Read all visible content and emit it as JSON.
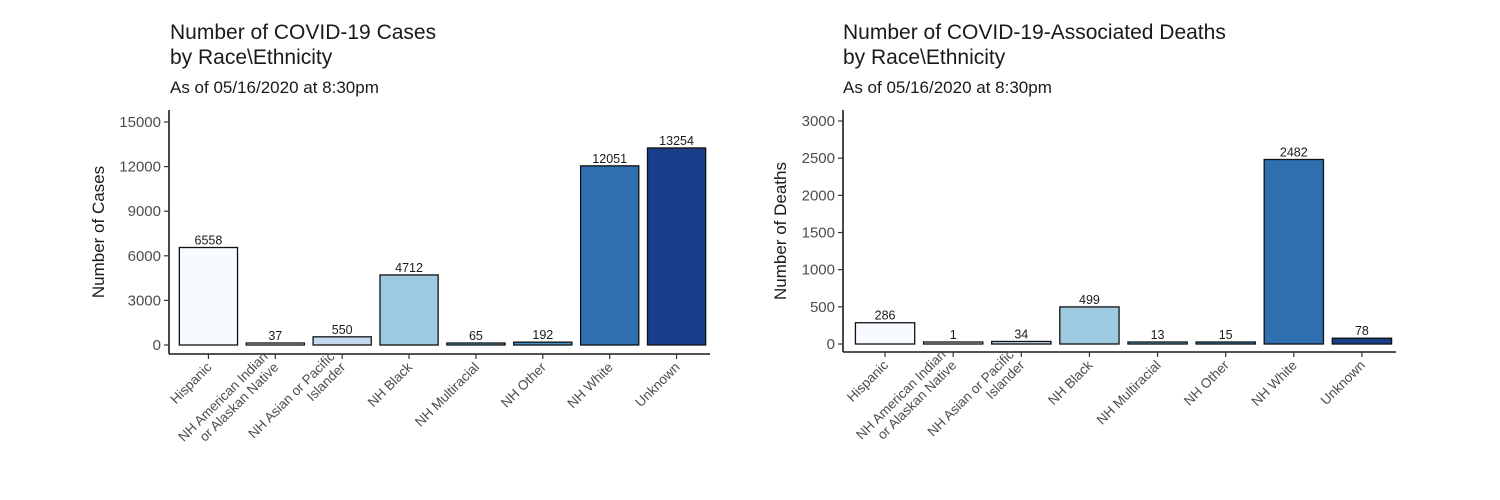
{
  "chart_data": [
    {
      "type": "bar",
      "title_line1": "Number of COVID-19 Cases",
      "title_line2": "by Race\\Ethnicity",
      "subtitle": "As of 05/16/2020 at 8:30pm",
      "xlabel": "",
      "ylabel": "Number of Cases",
      "ylim": [
        0,
        15000
      ],
      "yticks": [
        0,
        3000,
        6000,
        9000,
        12000,
        15000
      ],
      "grid": false,
      "categories": [
        [
          "Hispanic"
        ],
        [
          "NH American Indian",
          "or Alaskan Native"
        ],
        [
          "NH Asian or Pacific",
          "Islander"
        ],
        [
          "NH Black"
        ],
        [
          "NH Multiracial"
        ],
        [
          "NH Other"
        ],
        [
          "NH White"
        ],
        [
          "Unknown"
        ]
      ],
      "values": [
        6558,
        37,
        550,
        4712,
        65,
        192,
        12051,
        13254
      ],
      "colors": [
        "#f7fbff",
        "#deebf7",
        "#c6dbef",
        "#9ecae1",
        "#6baed6",
        "#4292c6",
        "#2f6fb0",
        "#1a3f8a"
      ]
    },
    {
      "type": "bar",
      "title_line1": "Number of COVID-19-Associated Deaths",
      "title_line2": "by Race\\Ethnicity",
      "subtitle": "As of 05/16/2020 at 8:30pm",
      "xlabel": "",
      "ylabel": "Number of Deaths",
      "ylim": [
        0,
        3000
      ],
      "yticks": [
        0,
        500,
        1000,
        1500,
        2000,
        2500,
        3000
      ],
      "grid": false,
      "categories": [
        [
          "Hispanic"
        ],
        [
          "NH American Indian",
          "or Alaskan Native"
        ],
        [
          "NH Asian or Pacific",
          "Islander"
        ],
        [
          "NH Black"
        ],
        [
          "NH Multiracial"
        ],
        [
          "NH Other"
        ],
        [
          "NH White"
        ],
        [
          "Unknown"
        ]
      ],
      "values": [
        286,
        1,
        34,
        499,
        13,
        15,
        2482,
        78
      ],
      "colors": [
        "#f7fbff",
        "#deebf7",
        "#c6dbef",
        "#9ecae1",
        "#6baed6",
        "#4292c6",
        "#2f6fb0",
        "#1a3f8a"
      ]
    }
  ]
}
